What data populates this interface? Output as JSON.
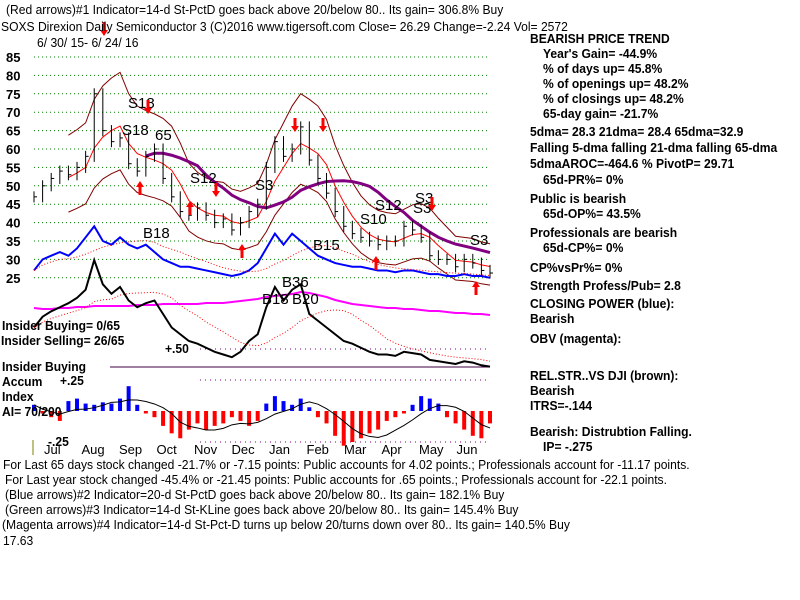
{
  "header": {
    "line1": "(Red arrows)#1 Indicator=14-d St-PctD goes back above 20/below 80.. Its gain= 306.8% Buy",
    "line2": "SOXS   Direxion Daily Semiconductor 3  (C)2016 www.tigersoft.com     Close=  26.29  Change=-2.24 Vol= 2572",
    "date_range": "6/ 30/ 15- 6/ 24/ 16"
  },
  "right_panel": {
    "trend": "BEARISH PRICE TREND",
    "years_gain": "Year's Gain= -44.9%",
    "days_up": "% of days up= 45.8%",
    "openings_up": "% of openings up= 48.2%",
    "closings_up": "% of closings up= 48.2%",
    "gain65": "65-day gain= -21.7%",
    "dma": "5dma= 28.3 21dma= 28.4 65dma=32.9",
    "falling": "Falling 5-dma  falling 21-dma  falling 65-dma",
    "aroc": "5dmaAROC=-464.6 %  PivotP= 29.71",
    "pr": "65d-PR%= 0%",
    "public": "Public is bearish",
    "op": "65d-OP%= 43.5%",
    "pros": "Professionals are bearish",
    "cp": "65d-CP%= 0%",
    "cpvspr": "CP%vsPr%=  0%",
    "strength": "Strength Profess/Pub= 2.8",
    "closing_power": "CLOSING POWER (blue):",
    "cp_state": "Bearish",
    "obv": "OBV (magenta):",
    "relstr": "REL.STR..VS DJI (brown):",
    "rs_state": "Bearish",
    "itrs": "ITRS=-.144",
    "dist": "Bearish: Distrubtion Falling.",
    "ip": "IP= -.275"
  },
  "left_labels": {
    "insider_buying": "Insider Buying= 0/65",
    "insider_selling": "Insider Selling= 26/65",
    "plus50": "+.50",
    "insider_line": "Insider Buying",
    "accum": "Accum",
    "index": "Index",
    "ai": "AI= 70/200",
    "plus25": "+.25",
    "minus25": "-.25"
  },
  "footer": {
    "line1": "For Last 65 days stock changed -21.7% or -7.15 points:  Public accounts for  4.02 points.;  Professionals account for -11.17 points.",
    "line2": "For Last year stock changed -45.4% or -21.45 points:  Public accounts for  .65 points.;  Professionals account for -22.1 points.",
    "line3": "(Blue arrows)#2 Indicator=20-d St-PctD goes back above 20/below 80.. Its gain= 182.1% Buy",
    "line4": "(Green arrows)#3 Indicator=14-d St-KLine goes back above 20/below 80.. Its gain= 145.4% Buy",
    "line5": "(Magenta arrows)#4 Indicator=14-d St-Pct-D turns up below 20/turns down over 80.. Its gain= 140.5% Buy",
    "overlap": "17.63"
  },
  "chart_data": {
    "type": "line",
    "title": "SOXS",
    "ylim": [
      25,
      85
    ],
    "yticks": [
      "85",
      "80",
      "75",
      "70",
      "65",
      "60",
      "55",
      "50",
      "45",
      "40",
      "35",
      "30",
      "25"
    ],
    "months": [
      "Jul",
      "Aug",
      "Sep",
      "Oct",
      "Nov",
      "Dec",
      "Jan",
      "Feb",
      "Mar",
      "Apr",
      "May",
      "Jun"
    ],
    "close": [
      47,
      50,
      52,
      54,
      53,
      55,
      58,
      75,
      65,
      62,
      63,
      56,
      54,
      58,
      60,
      52,
      47,
      43,
      42,
      44,
      42,
      40,
      41,
      38,
      40,
      43,
      45,
      55,
      62,
      58,
      60,
      66,
      57,
      52,
      48,
      43,
      39,
      37,
      36,
      35,
      34,
      35,
      35,
      39,
      38,
      36,
      31,
      30,
      30,
      28,
      30,
      29,
      27,
      26.3
    ],
    "closing_power": [
      27,
      30,
      31,
      32,
      31,
      33,
      36,
      39,
      35,
      34,
      36,
      34,
      33,
      34,
      32,
      30,
      29,
      28,
      28,
      27.5,
      27,
      26.5,
      26,
      25.5,
      26,
      27,
      29,
      33,
      37,
      34,
      37,
      35,
      33,
      31,
      30,
      29,
      28.5,
      28,
      28,
      27.5,
      27,
      27,
      26.5,
      27,
      27,
      26.5,
      26,
      26,
      25.5,
      25.5,
      26,
      25.5,
      25.5,
      25
    ],
    "obv": [
      22,
      21,
      21,
      22,
      22,
      23,
      23,
      24,
      24,
      24,
      24,
      24,
      25,
      25,
      25,
      26,
      26,
      26,
      26,
      26,
      27,
      27,
      27,
      28,
      29,
      30,
      31,
      33,
      34,
      35,
      36,
      38,
      37,
      35,
      33,
      30,
      28,
      26,
      25,
      24,
      23,
      22,
      22,
      21,
      21,
      20,
      19,
      19,
      18,
      17,
      17,
      16,
      16,
      15
    ],
    "rel_strength": [
      30,
      38,
      42,
      45,
      48,
      52,
      58,
      80,
      62,
      55,
      60,
      50,
      45,
      48,
      50,
      40,
      30,
      25,
      20,
      18,
      15,
      12,
      10,
      8,
      12,
      20,
      25,
      45,
      60,
      50,
      58,
      62,
      40,
      35,
      30,
      25,
      20,
      18,
      15,
      12,
      10,
      10,
      9,
      12,
      11,
      10,
      6,
      5,
      4,
      3,
      5,
      4,
      2,
      1
    ],
    "accum_index": [
      0.05,
      -0.02,
      -0.05,
      -0.08,
      0.08,
      0.1,
      0.06,
      0.05,
      0.07,
      0.06,
      0.1,
      0.2,
      0.05,
      -0.02,
      -0.05,
      -0.12,
      -0.18,
      -0.22,
      -0.15,
      -0.1,
      -0.15,
      -0.12,
      -0.1,
      -0.05,
      -0.08,
      -0.12,
      -0.08,
      0.06,
      0.12,
      0.08,
      0.05,
      0.1,
      0.03,
      -0.05,
      -0.1,
      -0.2,
      -0.28,
      -0.25,
      -0.22,
      -0.18,
      -0.15,
      -0.08,
      -0.05,
      -0.02,
      0.05,
      0.12,
      0.1,
      0.06,
      -0.05,
      -0.1,
      -0.15,
      -0.2,
      -0.22,
      -0.1
    ],
    "signals": [
      "S18",
      "S18",
      "65",
      "S12",
      "S3",
      "S3",
      "S10",
      "S12",
      "S3",
      "S3",
      "B18",
      "B15",
      "B36",
      "B18",
      "B20"
    ]
  }
}
